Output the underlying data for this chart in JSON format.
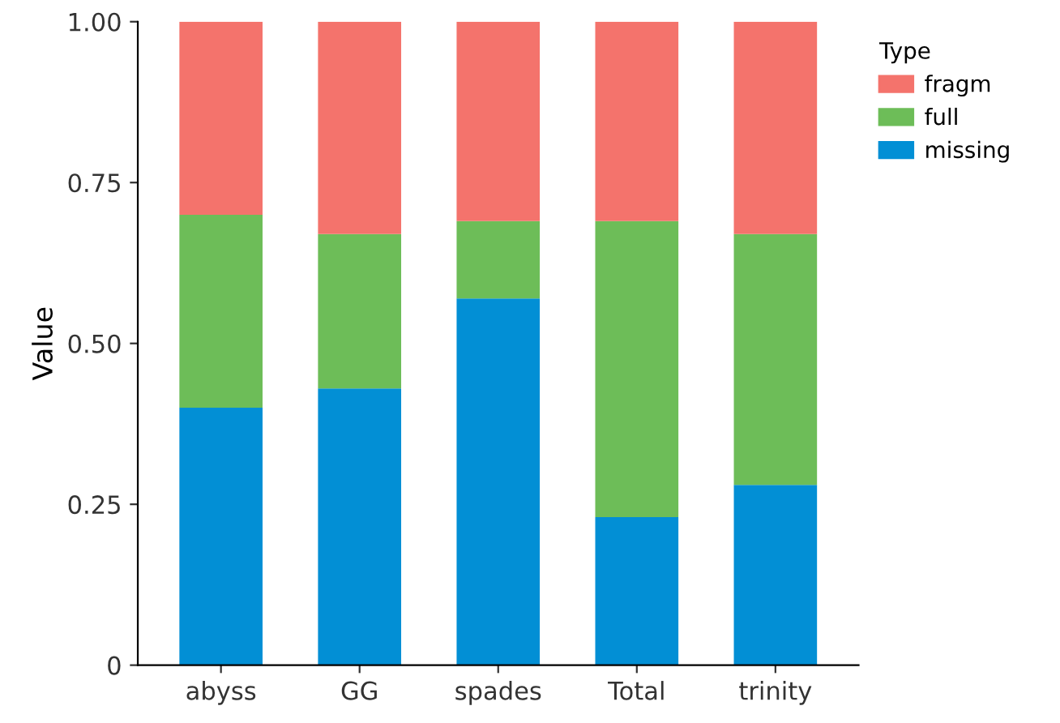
{
  "chart_data": {
    "type": "bar",
    "stacked": true,
    "ylabel": "Value",
    "legend_title": "Type",
    "legend": "right",
    "grid": false,
    "categories": [
      "abyss",
      "GG",
      "spades",
      "Total",
      "trinity"
    ],
    "series": [
      {
        "name": "missing",
        "color": "#028fd5",
        "values": [
          0.4,
          0.43,
          0.57,
          0.23,
          0.28
        ]
      },
      {
        "name": "full",
        "color": "#6dbd58",
        "values": [
          0.3,
          0.24,
          0.12,
          0.46,
          0.39
        ]
      },
      {
        "name": "fragm",
        "color": "#f4736c",
        "values": [
          0.3,
          0.33,
          0.31,
          0.31,
          0.33
        ]
      }
    ],
    "ylim": [
      0,
      1
    ],
    "yticks": [
      0,
      0.25,
      {
        "value": 0.5,
        "label": "0.50"
      },
      0.75,
      {
        "value": 1,
        "label": "1.00"
      }
    ]
  }
}
